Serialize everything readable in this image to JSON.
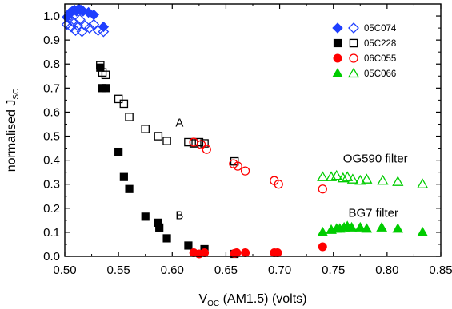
{
  "chart_data": {
    "type": "scatter",
    "xlabel_main": "V",
    "xlabel_sub": "OC",
    "xlabel_rest": " (AM1.5) (volts)",
    "ylabel_main": "normalised J",
    "ylabel_sub": "SC",
    "xlim": [
      0.5,
      0.85
    ],
    "ylim": [
      0.0,
      1.05
    ],
    "x_ticks": [
      "0.50",
      "0.55",
      "0.60",
      "0.65",
      "0.70",
      "0.75",
      "0.80",
      "0.85"
    ],
    "y_ticks": [
      "0.0",
      "0.1",
      "0.2",
      "0.3",
      "0.4",
      "0.5",
      "0.6",
      "0.7",
      "0.8",
      "0.9",
      "1.0"
    ],
    "legend_position": "top-right",
    "colors": {
      "05C074": "#1f3fff",
      "05C228": "#000000",
      "06C055": "#ff0000",
      "05C066": "#00cc00"
    },
    "annotations": [
      {
        "text": "A",
        "x": 0.603,
        "y": 0.54
      },
      {
        "text": "B",
        "x": 0.603,
        "y": 0.155
      },
      {
        "text": "OG590 filter",
        "x": 0.759,
        "y": 0.39
      },
      {
        "text": "BG7 filter",
        "x": 0.764,
        "y": 0.165
      }
    ],
    "series": [
      {
        "name": "05C074",
        "color": "#1f3fff",
        "marker": "diamond",
        "filled": {
          "x": [
            0.502,
            0.505,
            0.507,
            0.509,
            0.511,
            0.513,
            0.515,
            0.517,
            0.522,
            0.527,
            0.536
          ],
          "y": [
            0.995,
            1.015,
            1.02,
            1.025,
            1.02,
            1.03,
            1.025,
            1.02,
            1.015,
            1.005,
            0.955
          ]
        },
        "open": {
          "x": [
            0.502,
            0.504,
            0.506,
            0.508,
            0.51,
            0.512,
            0.514,
            0.516,
            0.519,
            0.523,
            0.527,
            0.531,
            0.536
          ],
          "y": [
            0.965,
            0.99,
            0.955,
            0.975,
            0.94,
            0.96,
            0.985,
            0.935,
            0.96,
            0.95,
            0.965,
            0.94,
            0.935
          ]
        }
      },
      {
        "name": "05C228",
        "color": "#000000",
        "marker": "square",
        "filled": {
          "x": [
            0.533,
            0.535,
            0.538,
            0.55,
            0.555,
            0.56,
            0.575,
            0.587,
            0.588,
            0.595,
            0.615,
            0.63,
            0.658
          ],
          "y": [
            0.785,
            0.7,
            0.7,
            0.435,
            0.33,
            0.28,
            0.165,
            0.14,
            0.12,
            0.075,
            0.045,
            0.03,
            0.01
          ]
        },
        "open": {
          "x": [
            0.533,
            0.535,
            0.538,
            0.55,
            0.555,
            0.56,
            0.575,
            0.587,
            0.595,
            0.615,
            0.62,
            0.625,
            0.63,
            0.658
          ],
          "y": [
            0.795,
            0.765,
            0.755,
            0.655,
            0.635,
            0.58,
            0.53,
            0.5,
            0.48,
            0.475,
            0.47,
            0.475,
            0.47,
            0.395
          ]
        }
      },
      {
        "name": "06C055",
        "color": "#ff0000",
        "marker": "circle",
        "filled": {
          "x": [
            0.62,
            0.625,
            0.63,
            0.658,
            0.66,
            0.668,
            0.695,
            0.698,
            0.74
          ],
          "y": [
            0.015,
            0.01,
            0.015,
            0.012,
            0.015,
            0.015,
            0.015,
            0.015,
            0.04
          ]
        },
        "open": {
          "x": [
            0.62,
            0.627,
            0.632,
            0.657,
            0.661,
            0.668,
            0.695,
            0.699,
            0.74
          ],
          "y": [
            0.475,
            0.465,
            0.445,
            0.385,
            0.375,
            0.355,
            0.315,
            0.3,
            0.28
          ]
        }
      },
      {
        "name": "05C066",
        "color": "#00cc00",
        "marker": "triangle",
        "filled": {
          "x": [
            0.74,
            0.748,
            0.753,
            0.756,
            0.76,
            0.763,
            0.767,
            0.775,
            0.781,
            0.795,
            0.81,
            0.833
          ],
          "y": [
            0.1,
            0.11,
            0.115,
            0.115,
            0.12,
            0.125,
            0.12,
            0.12,
            0.115,
            0.12,
            0.115,
            0.1
          ]
        },
        "open": {
          "x": [
            0.74,
            0.748,
            0.753,
            0.759,
            0.763,
            0.768,
            0.775,
            0.781,
            0.796,
            0.81,
            0.833
          ],
          "y": [
            0.33,
            0.33,
            0.335,
            0.325,
            0.33,
            0.32,
            0.315,
            0.32,
            0.315,
            0.31,
            0.3
          ]
        }
      }
    ]
  }
}
